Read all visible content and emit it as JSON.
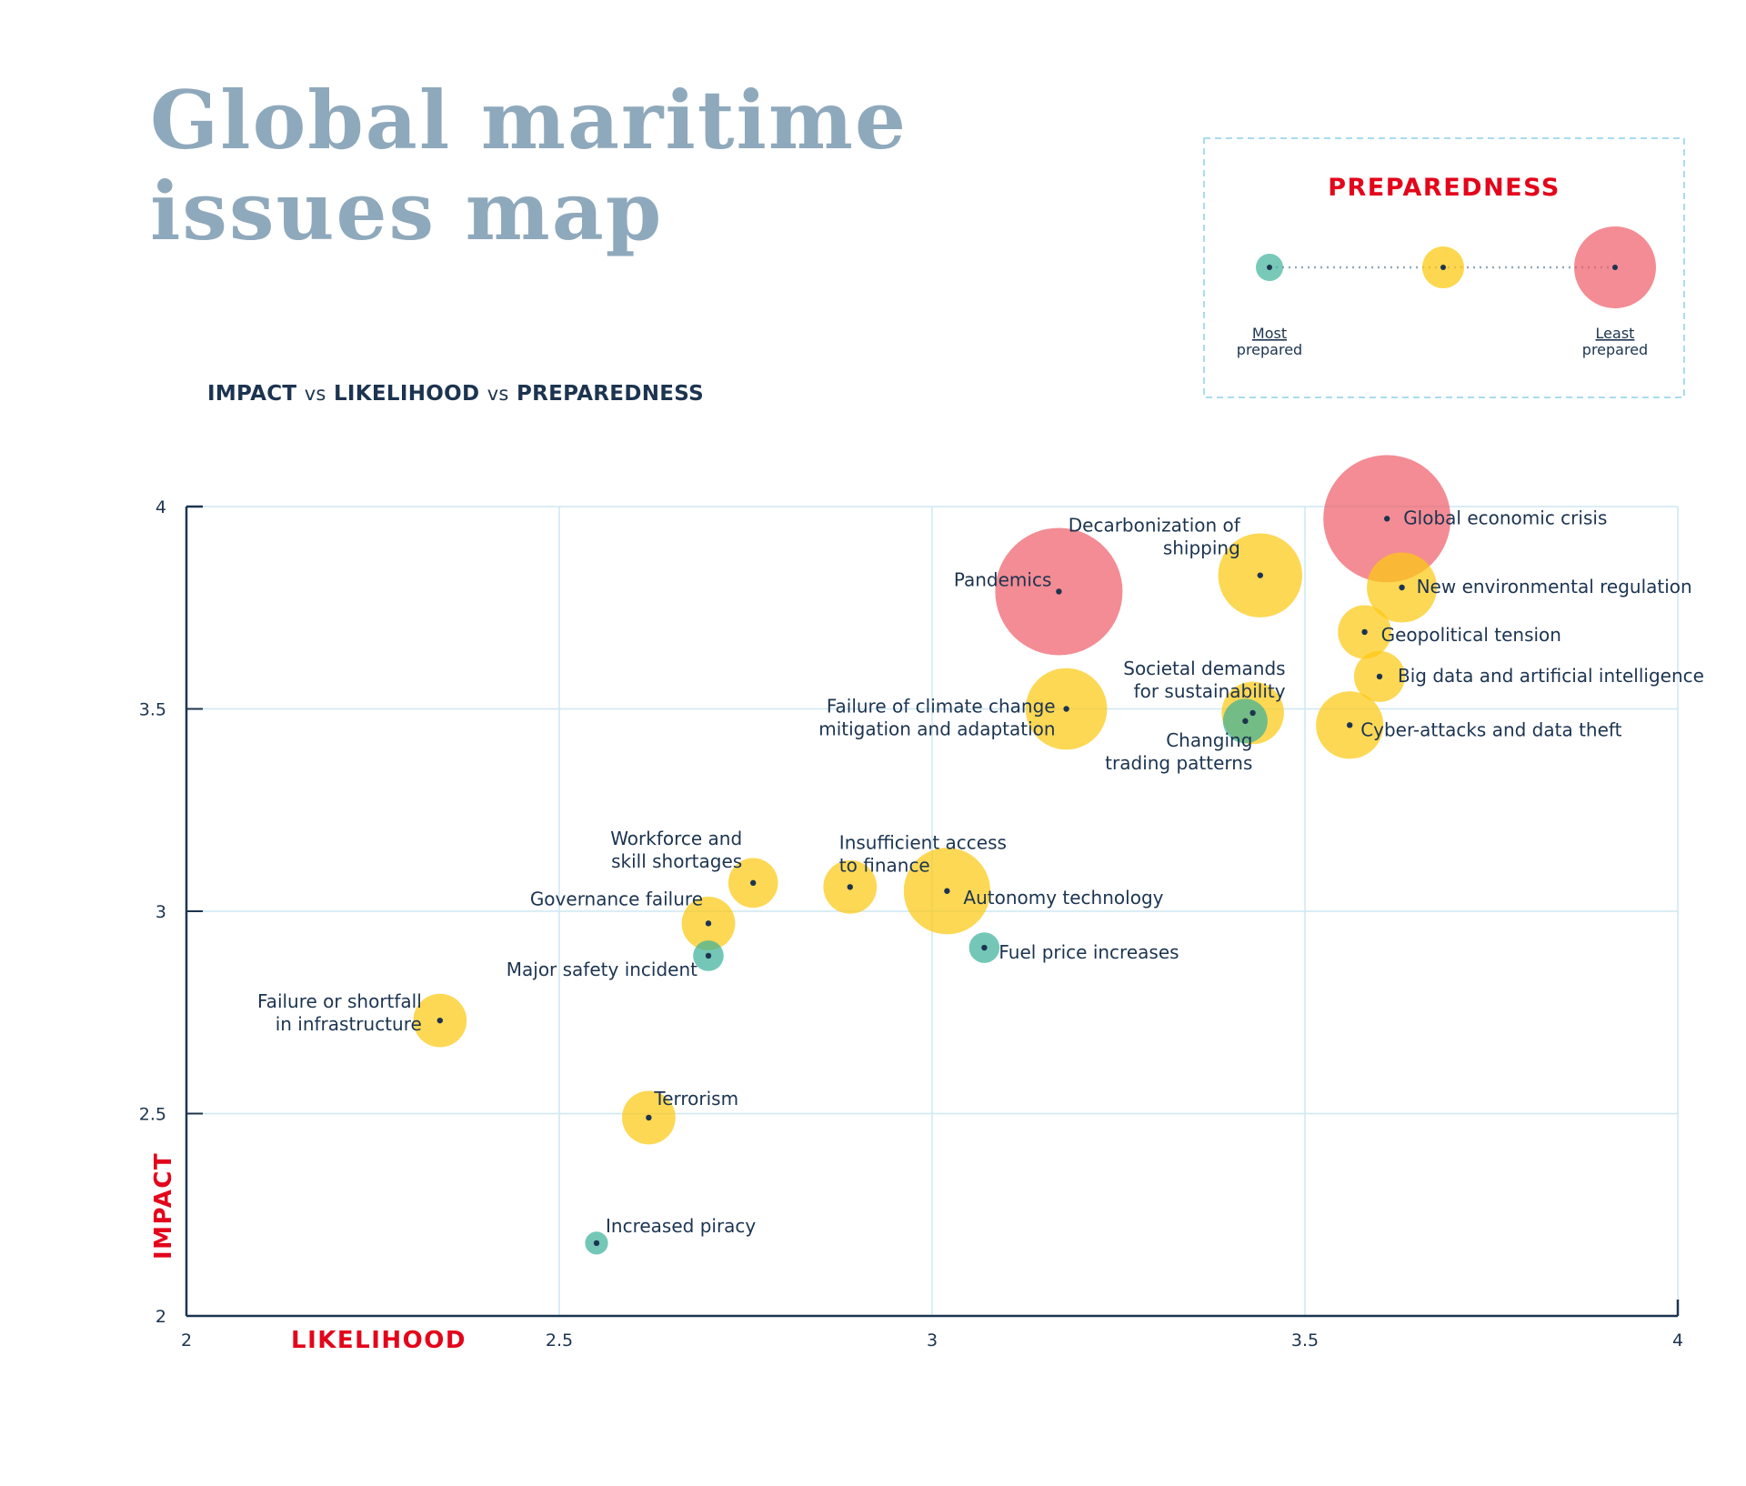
{
  "title_line1": "Global maritime",
  "title_line2": "issues map",
  "subtitle": {
    "impact": "IMPACT",
    "vs1": "vs",
    "likelihood": "LIKELIHOOD",
    "vs2": "vs",
    "preparedness": "PREPAREDNESS"
  },
  "legend": {
    "title": "PREPAREDNESS",
    "most_line1": "Most",
    "most_line2": "prepared",
    "least_line1": "Least",
    "least_line2": "prepared"
  },
  "colors": {
    "most": "#3fb29a",
    "middle": "#fcc914",
    "least": "#ee5b66",
    "axis_title": "#e3051b",
    "text": "#1c3450",
    "grid": "#cde7f2",
    "title": "#8fa9bc"
  },
  "chart_data": {
    "type": "scatter",
    "xlabel": "LIKELIHOOD",
    "ylabel": "IMPACT",
    "xlim": [
      2,
      4
    ],
    "ylim": [
      2,
      4
    ],
    "x_ticks": [
      "2",
      "2.5",
      "3",
      "3.5",
      "4"
    ],
    "y_ticks": [
      "2",
      "2.5",
      "3",
      "3.5",
      "4"
    ],
    "grid": true,
    "legend_position": "top-right",
    "points": [
      {
        "label": "Global economic crisis",
        "x": 3.61,
        "y": 3.97,
        "preparedness": "least",
        "size": 1.0
      },
      {
        "label": "Pandemics",
        "x": 3.17,
        "y": 3.79,
        "preparedness": "least",
        "size": 1.0
      },
      {
        "label": "Decarbonization of shipping",
        "x": 3.44,
        "y": 3.83,
        "preparedness": "middle",
        "size": 0.66
      },
      {
        "label": "New environmental regulation",
        "x": 3.63,
        "y": 3.8,
        "preparedness": "middle",
        "size": 0.55
      },
      {
        "label": "Geopolitical tension",
        "x": 3.58,
        "y": 3.69,
        "preparedness": "middle",
        "size": 0.42
      },
      {
        "label": "Big data and artificial intelligence",
        "x": 3.6,
        "y": 3.58,
        "preparedness": "middle",
        "size": 0.4
      },
      {
        "label": "Failure of climate change mitigation and adaptation",
        "x": 3.18,
        "y": 3.5,
        "preparedness": "middle",
        "size": 0.64
      },
      {
        "label": "Societal demands for sustainability",
        "x": 3.43,
        "y": 3.49,
        "preparedness": "middle",
        "size": 0.49
      },
      {
        "label": "Changing trading patterns",
        "x": 3.42,
        "y": 3.47,
        "preparedness": "most",
        "size": 0.35
      },
      {
        "label": "Cyber-attacks and data theft",
        "x": 3.56,
        "y": 3.46,
        "preparedness": "middle",
        "size": 0.53
      },
      {
        "label": "Workforce and skill shortages",
        "x": 2.76,
        "y": 3.07,
        "preparedness": "middle",
        "size": 0.39
      },
      {
        "label": "Insufficient access to finance",
        "x": 2.89,
        "y": 3.06,
        "preparedness": "middle",
        "size": 0.42
      },
      {
        "label": "Autonomy technology",
        "x": 3.02,
        "y": 3.05,
        "preparedness": "middle",
        "size": 0.68
      },
      {
        "label": "Governance failure",
        "x": 2.7,
        "y": 2.97,
        "preparedness": "middle",
        "size": 0.42
      },
      {
        "label": "Major safety incident",
        "x": 2.7,
        "y": 2.89,
        "preparedness": "most",
        "size": 0.24
      },
      {
        "label": "Fuel price increases",
        "x": 3.07,
        "y": 2.91,
        "preparedness": "most",
        "size": 0.24
      },
      {
        "label": "Failure or shortfall in infrastructure",
        "x": 2.34,
        "y": 2.73,
        "preparedness": "middle",
        "size": 0.42
      },
      {
        "label": "Terrorism",
        "x": 2.62,
        "y": 2.49,
        "preparedness": "middle",
        "size": 0.42
      },
      {
        "label": "Increased piracy",
        "x": 2.55,
        "y": 2.18,
        "preparedness": "most",
        "size": 0.18
      }
    ]
  }
}
